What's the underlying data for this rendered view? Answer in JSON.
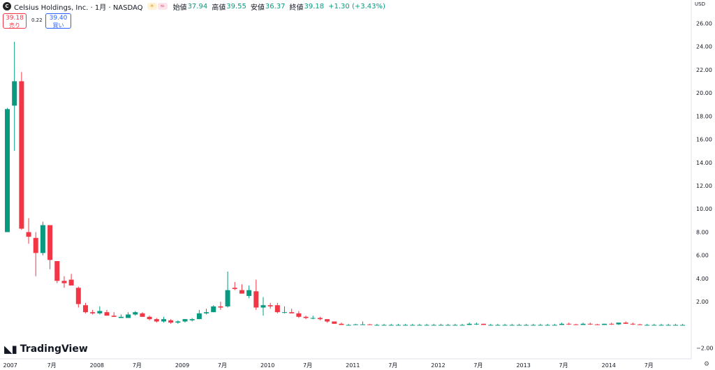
{
  "header": {
    "symbol": "Celsius Holdings, Inc. · 1月 · NASDAQ",
    "open_label": "始値",
    "open": "37.94",
    "high_label": "高値",
    "high": "39.55",
    "low_label": "安値",
    "low": "36.37",
    "close_label": "終値",
    "close": "39.18",
    "change": "+1.30 (+3.43%)"
  },
  "trade": {
    "sell_price": "39.18",
    "sell_label": "売り",
    "spread": "0.22",
    "buy_price": "39.40",
    "buy_label": "買い"
  },
  "currency": "USD",
  "brand": "TradingView",
  "colors": {
    "up": "#089981",
    "down": "#f23645",
    "accent": "#2962ff"
  },
  "chart_data": {
    "type": "candlestick",
    "interval": "1M",
    "ylim": [
      -2.8,
      26.8
    ],
    "y_ticks": [
      "26.00",
      "24.00",
      "22.00",
      "20.00",
      "18.00",
      "16.00",
      "14.00",
      "12.00",
      "10.00",
      "8.00",
      "6.00",
      "4.00",
      "2.00",
      "−2.00"
    ],
    "y_tick_values": [
      26,
      24,
      22,
      20,
      18,
      16,
      14,
      12,
      10,
      8,
      6,
      4,
      2,
      -2
    ],
    "x_ticks": [
      {
        "label": "2007",
        "i": 0
      },
      {
        "label": "7月",
        "i": 6
      },
      {
        "label": "2008",
        "i": 12
      },
      {
        "label": "7月",
        "i": 18
      },
      {
        "label": "2009",
        "i": 24
      },
      {
        "label": "7月",
        "i": 30
      },
      {
        "label": "2010",
        "i": 36
      },
      {
        "label": "7月",
        "i": 42
      },
      {
        "label": "2011",
        "i": 48
      },
      {
        "label": "7月",
        "i": 54
      },
      {
        "label": "2012",
        "i": 60
      },
      {
        "label": "7月",
        "i": 66
      },
      {
        "label": "2013",
        "i": 72
      },
      {
        "label": "7月",
        "i": 78
      },
      {
        "label": "2014",
        "i": 84
      },
      {
        "label": "7月",
        "i": 90
      }
    ],
    "ohlc": [
      [
        8.0,
        18.7,
        8.0,
        18.6
      ],
      [
        18.9,
        24.4,
        15.0,
        21.0
      ],
      [
        21.0,
        21.8,
        8.2,
        8.3
      ],
      [
        8.0,
        9.2,
        7.0,
        7.6
      ],
      [
        7.5,
        8.0,
        4.2,
        6.2
      ],
      [
        6.2,
        8.9,
        6.0,
        8.6
      ],
      [
        8.6,
        8.6,
        4.8,
        5.6
      ],
      [
        5.5,
        5.5,
        3.6,
        3.8
      ],
      [
        3.8,
        4.2,
        3.2,
        3.6
      ],
      [
        3.9,
        4.4,
        3.5,
        3.4
      ],
      [
        3.2,
        3.3,
        1.5,
        1.8
      ],
      [
        1.7,
        1.9,
        1.0,
        1.1
      ],
      [
        1.1,
        1.3,
        0.9,
        1.0
      ],
      [
        1.0,
        1.6,
        0.9,
        1.2
      ],
      [
        1.1,
        1.3,
        0.8,
        0.8
      ],
      [
        0.8,
        1.1,
        0.7,
        0.7
      ],
      [
        0.6,
        0.9,
        0.6,
        0.7
      ],
      [
        0.6,
        1.1,
        0.6,
        0.9
      ],
      [
        0.9,
        1.2,
        0.8,
        1.1
      ],
      [
        1.0,
        1.1,
        0.7,
        0.7
      ],
      [
        0.7,
        0.8,
        0.4,
        0.5
      ],
      [
        0.5,
        0.6,
        0.2,
        0.3
      ],
      [
        0.3,
        0.7,
        0.2,
        0.5
      ],
      [
        0.4,
        0.5,
        0.1,
        0.2
      ],
      [
        0.2,
        0.4,
        0.1,
        0.3
      ],
      [
        0.3,
        0.5,
        0.2,
        0.5
      ],
      [
        0.4,
        0.6,
        0.3,
        0.5
      ],
      [
        0.5,
        1.3,
        0.5,
        1.0
      ],
      [
        1.0,
        1.4,
        0.9,
        1.1
      ],
      [
        1.1,
        1.7,
        1.1,
        1.6
      ],
      [
        1.6,
        2.0,
        1.3,
        1.5
      ],
      [
        1.6,
        4.6,
        1.5,
        3.0
      ],
      [
        3.2,
        3.7,
        3.0,
        3.1
      ],
      [
        3.0,
        3.5,
        2.7,
        2.7
      ],
      [
        2.5,
        3.4,
        2.3,
        3.0
      ],
      [
        2.9,
        3.9,
        1.3,
        1.5
      ],
      [
        1.5,
        2.4,
        0.8,
        1.7
      ],
      [
        1.7,
        1.9,
        1.4,
        1.6
      ],
      [
        1.7,
        1.9,
        1.0,
        1.1
      ],
      [
        1.1,
        1.6,
        1.0,
        1.1
      ],
      [
        1.1,
        1.4,
        1.0,
        1.0
      ],
      [
        1.0,
        1.2,
        0.6,
        0.7
      ],
      [
        0.7,
        0.8,
        0.5,
        0.6
      ],
      [
        0.6,
        0.8,
        0.5,
        0.6
      ],
      [
        0.6,
        0.7,
        0.4,
        0.5
      ],
      [
        0.5,
        0.5,
        0.2,
        0.3
      ],
      [
        0.3,
        0.3,
        0.1,
        0.1
      ],
      [
        0.1,
        0.2,
        0.0,
        0.0
      ],
      [
        0.0,
        0.1,
        0.0,
        0.0
      ],
      [
        0.0,
        0.1,
        0.0,
        0.05
      ],
      [
        0.05,
        0.3,
        0.0,
        0.05
      ],
      [
        0.05,
        0.1,
        0.0,
        0.0
      ],
      [
        0.0,
        0.1,
        0.0,
        0.0
      ],
      [
        0.0,
        0.1,
        0.0,
        0.0
      ],
      [
        0.0,
        0.1,
        0.0,
        0.0
      ],
      [
        0.0,
        0.1,
        0.0,
        0.0
      ],
      [
        0.0,
        0.1,
        0.0,
        0.0
      ],
      [
        0.0,
        0.1,
        0.0,
        0.0
      ],
      [
        0.0,
        0.1,
        0.0,
        0.0
      ],
      [
        0.0,
        0.1,
        0.0,
        0.0
      ],
      [
        0.0,
        0.1,
        0.0,
        0.0
      ],
      [
        0.0,
        0.1,
        0.0,
        0.0
      ],
      [
        0.0,
        0.1,
        0.0,
        0.0
      ],
      [
        0.0,
        0.1,
        0.0,
        0.0
      ],
      [
        0.0,
        0.1,
        0.0,
        0.0
      ],
      [
        0.0,
        0.2,
        0.0,
        0.1
      ],
      [
        0.1,
        0.2,
        0.0,
        0.1
      ],
      [
        0.1,
        0.1,
        0.0,
        0.0
      ],
      [
        0.0,
        0.1,
        0.0,
        0.0
      ],
      [
        0.0,
        0.1,
        0.0,
        0.0
      ],
      [
        0.0,
        0.1,
        0.0,
        0.0
      ],
      [
        0.0,
        0.1,
        0.0,
        0.0
      ],
      [
        0.0,
        0.1,
        0.0,
        0.0
      ],
      [
        0.0,
        0.1,
        0.0,
        0.0
      ],
      [
        0.0,
        0.1,
        0.0,
        0.0
      ],
      [
        0.0,
        0.1,
        0.0,
        0.0
      ],
      [
        0.0,
        0.1,
        0.0,
        0.0
      ],
      [
        0.0,
        0.1,
        0.0,
        0.0
      ],
      [
        0.0,
        0.2,
        0.0,
        0.1
      ],
      [
        0.1,
        0.2,
        0.0,
        0.05
      ],
      [
        0.05,
        0.1,
        0.0,
        0.0
      ],
      [
        0.0,
        0.2,
        0.0,
        0.1
      ],
      [
        0.1,
        0.2,
        0.0,
        0.05
      ],
      [
        0.05,
        0.1,
        0.0,
        0.0
      ],
      [
        0.0,
        0.1,
        0.0,
        0.1
      ],
      [
        0.1,
        0.2,
        0.0,
        0.05
      ],
      [
        0.05,
        0.2,
        0.0,
        0.2
      ],
      [
        0.2,
        0.3,
        0.1,
        0.1
      ],
      [
        0.1,
        0.2,
        0.0,
        0.05
      ],
      [
        0.05,
        0.1,
        0.0,
        0.0
      ],
      [
        0.0,
        0.1,
        0.0,
        0.0
      ],
      [
        0.0,
        0.1,
        0.0,
        0.0
      ],
      [
        0.0,
        0.1,
        0.0,
        0.0
      ],
      [
        0.0,
        0.1,
        0.0,
        0.0
      ],
      [
        0.0,
        0.1,
        0.0,
        0.0
      ],
      [
        0.0,
        0.1,
        0.0,
        0.0
      ]
    ]
  }
}
